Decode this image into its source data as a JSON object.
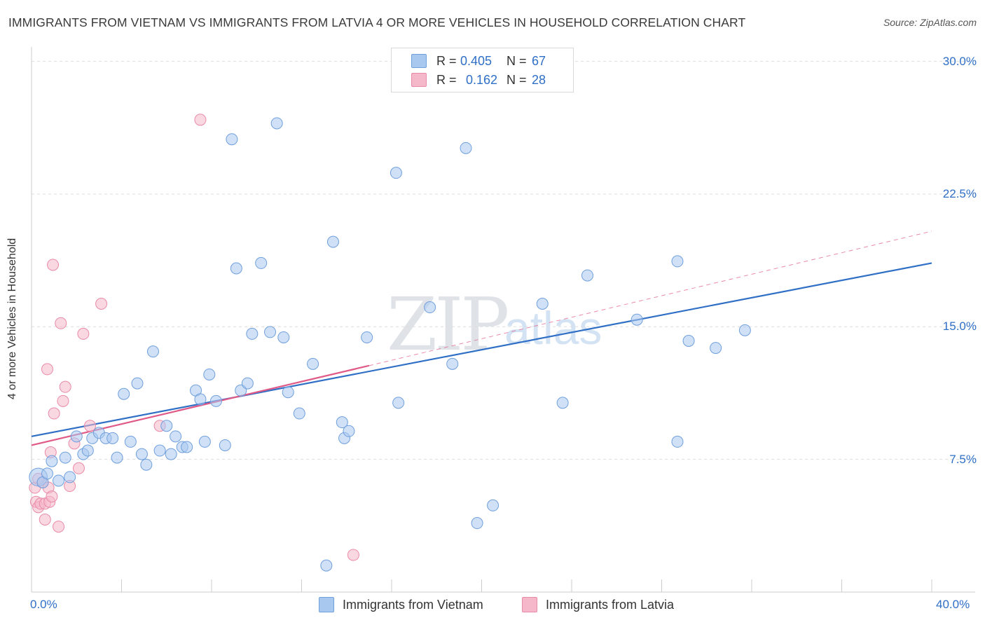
{
  "header": {
    "title": "IMMIGRANTS FROM VIETNAM VS IMMIGRANTS FROM LATVIA 4 OR MORE VEHICLES IN HOUSEHOLD CORRELATION CHART",
    "source": "Source: ZipAtlas.com"
  },
  "watermark": {
    "zip": "ZIP",
    "atlas": "atlas"
  },
  "legend": {
    "rows": [
      {
        "r_label": "R =",
        "r_value": "0.405",
        "n_label": "N =",
        "n_value": "67",
        "color": "#a9c8f0"
      },
      {
        "r_label": "R =",
        "r_value": "0.162",
        "n_label": "N =",
        "n_value": "28",
        "color": "#f5b8cb"
      }
    ]
  },
  "bottom_legend": {
    "vietnam": "Immigrants from Vietnam",
    "latvia": "Immigrants from Latvia"
  },
  "colors": {
    "vietnam_fill": "#a9c8f0",
    "vietnam_stroke": "#6f9fdc",
    "vietnam_line": "#2f6fc6",
    "latvia_fill": "#f5b8cb",
    "latvia_stroke": "#e98aa8",
    "latvia_line": "#e05a88",
    "axis_text": "#2f6fc6"
  },
  "chart_data": {
    "type": "scatter",
    "title": "IMMIGRANTS FROM VIETNAM VS IMMIGRANTS FROM LATVIA 4 OR MORE VEHICLES IN HOUSEHOLD CORRELATION CHART",
    "xlabel": "",
    "ylabel": "4 or more Vehicles in Household",
    "xlim": [
      0,
      40
    ],
    "ylim": [
      0,
      30.5
    ],
    "x_tick_labels": [
      "0.0%",
      "40.0%"
    ],
    "y_ticks": [
      7.5,
      15.0,
      22.5,
      30.0
    ],
    "y_tick_labels": [
      "7.5%",
      "15.0%",
      "22.5%",
      "30.0%"
    ],
    "grid": true,
    "legend_position": "top-center",
    "series": [
      {
        "name": "Immigrants from Vietnam",
        "R": 0.405,
        "N": 67,
        "trend": {
          "x0": 0,
          "y0": 8.8,
          "x1": 40,
          "y1": 18.6
        },
        "points": [
          [
            0.3,
            6.5,
            1.6
          ],
          [
            0.5,
            6.2,
            1.0
          ],
          [
            0.7,
            6.7,
            1.0
          ],
          [
            0.9,
            7.4,
            1.0
          ],
          [
            1.2,
            6.3,
            1.0
          ],
          [
            1.5,
            7.6,
            1.0
          ],
          [
            1.7,
            6.5,
            1.0
          ],
          [
            2.0,
            8.8,
            1.0
          ],
          [
            2.3,
            7.8,
            1.0
          ],
          [
            2.5,
            8.0,
            1.0
          ],
          [
            2.7,
            8.7,
            1.0
          ],
          [
            3.0,
            9.0,
            1.0
          ],
          [
            3.3,
            8.7,
            1.0
          ],
          [
            3.6,
            8.7,
            1.0
          ],
          [
            3.8,
            7.6,
            1.0
          ],
          [
            4.1,
            11.2,
            1.0
          ],
          [
            4.4,
            8.5,
            1.0
          ],
          [
            4.7,
            11.8,
            1.0
          ],
          [
            4.9,
            7.8,
            1.0
          ],
          [
            5.1,
            7.2,
            1.0
          ],
          [
            5.4,
            13.6,
            1.0
          ],
          [
            5.7,
            8.0,
            1.0
          ],
          [
            6.0,
            9.4,
            1.0
          ],
          [
            6.2,
            7.8,
            1.0
          ],
          [
            6.4,
            8.8,
            1.0
          ],
          [
            6.7,
            8.2,
            1.0
          ],
          [
            6.9,
            8.2,
            1.0
          ],
          [
            7.3,
            11.4,
            1.0
          ],
          [
            7.5,
            10.9,
            1.0
          ],
          [
            7.7,
            8.5,
            1.0
          ],
          [
            7.9,
            12.3,
            1.0
          ],
          [
            8.2,
            10.8,
            1.0
          ],
          [
            8.6,
            8.3,
            1.0
          ],
          [
            8.9,
            25.6,
            1.0
          ],
          [
            9.1,
            18.3,
            1.0
          ],
          [
            9.3,
            11.4,
            1.0
          ],
          [
            9.6,
            11.8,
            1.0
          ],
          [
            9.8,
            14.6,
            1.0
          ],
          [
            10.2,
            18.6,
            1.0
          ],
          [
            10.6,
            14.7,
            1.0
          ],
          [
            10.9,
            26.5,
            1.0
          ],
          [
            11.2,
            14.4,
            1.0
          ],
          [
            11.4,
            11.3,
            1.0
          ],
          [
            11.9,
            10.1,
            1.0
          ],
          [
            12.5,
            12.9,
            1.0
          ],
          [
            13.4,
            19.8,
            1.0
          ],
          [
            13.1,
            1.5,
            1.0
          ],
          [
            13.8,
            9.6,
            1.0
          ],
          [
            13.9,
            8.7,
            1.0
          ],
          [
            14.1,
            9.1,
            1.0
          ],
          [
            14.9,
            14.4,
            1.0
          ],
          [
            16.2,
            23.7,
            1.0
          ],
          [
            16.3,
            10.7,
            1.0
          ],
          [
            17.7,
            16.1,
            1.0
          ],
          [
            18.7,
            12.9,
            1.0
          ],
          [
            19.3,
            25.1,
            1.0
          ],
          [
            19.8,
            3.9,
            1.0
          ],
          [
            20.5,
            4.9,
            1.0
          ],
          [
            22.7,
            16.3,
            1.0
          ],
          [
            23.6,
            10.7,
            1.0
          ],
          [
            24.7,
            17.9,
            1.0
          ],
          [
            26.9,
            15.4,
            1.0
          ],
          [
            28.7,
            18.7,
            1.0
          ],
          [
            28.7,
            8.5,
            1.0
          ],
          [
            29.2,
            14.2,
            1.0
          ],
          [
            30.4,
            13.8,
            1.0
          ],
          [
            31.7,
            14.8,
            1.0
          ]
        ]
      },
      {
        "name": "Immigrants from Latvia",
        "R": 0.162,
        "N": 28,
        "trend": {
          "x0": 0,
          "y0": 8.3,
          "x1": 15.0,
          "y1": 12.8
        },
        "trend_extended": {
          "x0": 15.0,
          "y0": 12.8,
          "x1": 40,
          "y1": 20.4
        },
        "points": [
          [
            0.15,
            5.9,
            1.0
          ],
          [
            0.2,
            5.1,
            1.0
          ],
          [
            0.3,
            4.8,
            1.0
          ],
          [
            0.4,
            5.0,
            1.0
          ],
          [
            0.5,
            6.2,
            1.0
          ],
          [
            0.6,
            5.0,
            1.0
          ],
          [
            0.6,
            4.1,
            1.0
          ],
          [
            0.7,
            12.6,
            1.0
          ],
          [
            0.75,
            5.9,
            1.0
          ],
          [
            0.8,
            5.1,
            1.0
          ],
          [
            0.85,
            7.9,
            1.0
          ],
          [
            0.9,
            5.4,
            1.0
          ],
          [
            0.95,
            18.5,
            1.0
          ],
          [
            1.0,
            10.1,
            1.0
          ],
          [
            1.2,
            3.7,
            1.0
          ],
          [
            1.3,
            15.2,
            1.0
          ],
          [
            1.4,
            10.8,
            1.0
          ],
          [
            1.5,
            11.6,
            1.0
          ],
          [
            1.7,
            6.0,
            1.0
          ],
          [
            1.9,
            8.4,
            1.0
          ],
          [
            2.1,
            7.0,
            1.0
          ],
          [
            2.3,
            14.6,
            1.0
          ],
          [
            2.6,
            9.4,
            1.0
          ],
          [
            3.1,
            16.3,
            1.0
          ],
          [
            5.7,
            9.4,
            1.0
          ],
          [
            7.5,
            26.7,
            1.0
          ],
          [
            14.3,
            2.1,
            1.0
          ],
          [
            0.3,
            6.4,
            1.0
          ]
        ]
      }
    ]
  }
}
